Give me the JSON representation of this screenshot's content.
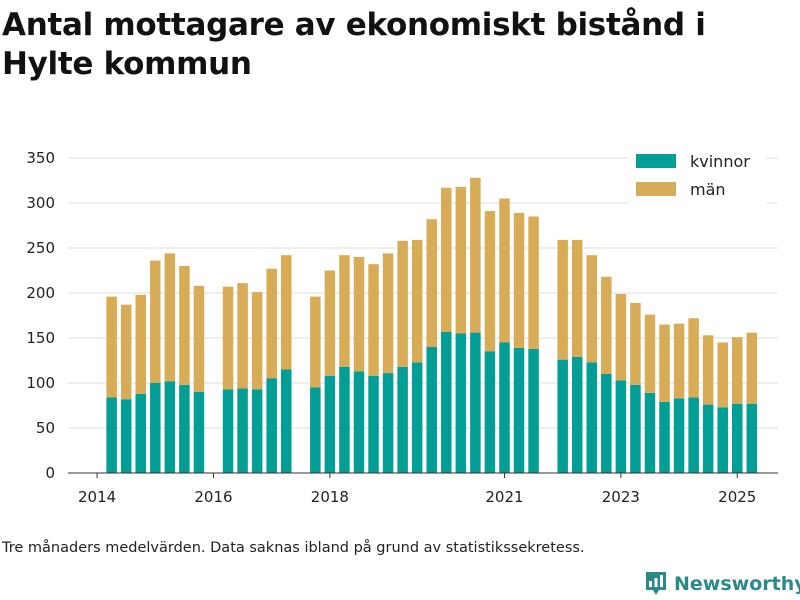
{
  "chart_data": {
    "type": "bar",
    "stacked": true,
    "title": "Antal mottagare av ekonomiskt bistånd i Hylte kommun",
    "xlabel": "",
    "ylabel": "",
    "ylim": [
      0,
      350
    ],
    "yticks": [
      0,
      50,
      100,
      150,
      200,
      250,
      300,
      350
    ],
    "x_start": 2013.5,
    "x_end": 2025.7,
    "xticks": [
      {
        "value": 2014.0,
        "label": "2014"
      },
      {
        "value": 2016.0,
        "label": "2016"
      },
      {
        "value": 2018.0,
        "label": "2018"
      },
      {
        "value": 2021.0,
        "label": "2021"
      },
      {
        "value": 2023.0,
        "label": "2023"
      },
      {
        "value": 2025.0,
        "label": "2025"
      }
    ],
    "grid": true,
    "legend_position": "top-right",
    "x": [
      2014.25,
      2014.5,
      2014.75,
      2015.0,
      2015.25,
      2015.5,
      2015.75,
      2016.25,
      2016.5,
      2016.75,
      2017.0,
      2017.25,
      2017.75,
      2018.0,
      2018.25,
      2018.5,
      2018.75,
      2019.0,
      2019.25,
      2019.5,
      2019.75,
      2020.0,
      2020.25,
      2020.5,
      2020.75,
      2021.0,
      2021.25,
      2021.5,
      2022.0,
      2022.25,
      2022.5,
      2022.75,
      2023.0,
      2023.25,
      2023.5,
      2023.75,
      2024.0,
      2024.25,
      2024.5,
      2024.75,
      2025.0,
      2025.25
    ],
    "series": [
      {
        "name": "kvinnor",
        "color": "#009e94",
        "values": [
          84,
          82,
          88,
          100,
          102,
          98,
          90,
          93,
          94,
          93,
          105,
          115,
          95,
          108,
          118,
          113,
          108,
          111,
          118,
          123,
          140,
          157,
          155,
          156,
          135,
          145,
          139,
          138,
          126,
          129,
          123,
          110,
          103,
          98,
          89,
          79,
          83,
          84,
          76,
          73,
          77,
          77
        ]
      },
      {
        "name": "män",
        "color": "#d8ac56",
        "values": [
          112,
          105,
          110,
          136,
          142,
          132,
          118,
          114,
          117,
          108,
          122,
          127,
          101,
          117,
          124,
          127,
          124,
          133,
          140,
          136,
          142,
          160,
          163,
          172,
          156,
          160,
          150,
          147,
          133,
          130,
          119,
          108,
          96,
          91,
          87,
          86,
          83,
          88,
          77,
          72,
          74,
          79
        ]
      }
    ]
  },
  "caption": "Tre månaders medelvärden. Data saknas ibland på grund av statistikssekretess.",
  "brand": {
    "name": "Newsworthy",
    "color": "#2a8a8a"
  }
}
